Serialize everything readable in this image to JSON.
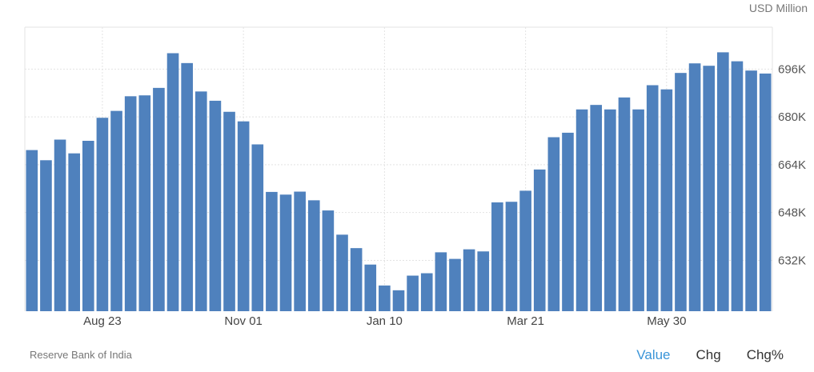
{
  "unit_label": "USD Million",
  "source": "Reserve Bank of India",
  "tabs": [
    {
      "label": "Value",
      "active": true
    },
    {
      "label": "Chg",
      "active": false
    },
    {
      "label": "Chg%",
      "active": false
    }
  ],
  "colors": {
    "bar": "#4f81bd",
    "grid": "#e3e3e3",
    "active_tab": "#3a95d8"
  },
  "chart_data": {
    "type": "bar",
    "title": "",
    "xlabel": "",
    "ylabel": "USD Million",
    "ylim": [
      615,
      710
    ],
    "y_ticks": [
      632,
      648,
      664,
      680,
      696
    ],
    "y_tick_labels": [
      "632K",
      "648K",
      "664K",
      "680K",
      "696K"
    ],
    "x_tick_labels": [
      {
        "label": "Aug 23",
        "index": 5
      },
      {
        "label": "Nov 01",
        "index": 15
      },
      {
        "label": "Jan 10",
        "index": 25
      },
      {
        "label": "Mar 21",
        "index": 35
      },
      {
        "label": "May 30",
        "index": 45
      }
    ],
    "values": [
      668.9,
      665.5,
      672.4,
      667.8,
      672.0,
      679.7,
      682.0,
      686.9,
      687.2,
      689.7,
      701.3,
      698.0,
      688.5,
      685.4,
      681.7,
      678.5,
      670.8,
      654.9,
      654.0,
      655.0,
      652.1,
      648.7,
      640.6,
      636.1,
      630.6,
      623.6,
      622.0,
      626.9,
      627.7,
      634.7,
      632.5,
      635.7,
      635.0,
      651.4,
      651.6,
      655.3,
      662.4,
      673.2,
      674.7,
      682.5,
      684.0,
      682.5,
      686.5,
      682.5,
      690.6,
      689.2,
      694.7,
      697.9,
      697.1,
      701.6,
      698.6,
      695.5,
      694.5
    ]
  }
}
